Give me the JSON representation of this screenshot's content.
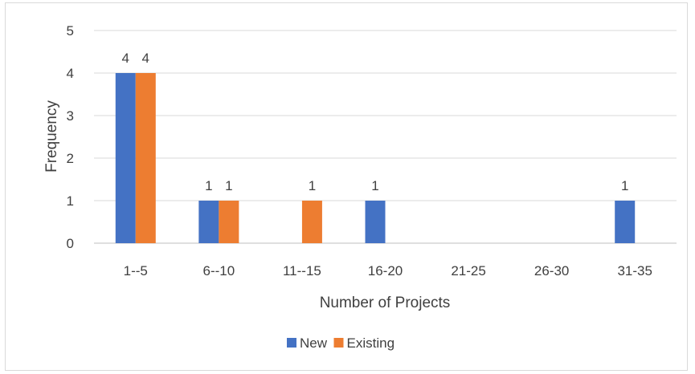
{
  "chart_data": {
    "type": "bar",
    "categories": [
      "1--5",
      "6--10",
      "11--15",
      "16-20",
      "21-25",
      "26-30",
      "31-35"
    ],
    "series": [
      {
        "name": "New",
        "values": [
          4,
          1,
          0,
          1,
          0,
          0,
          1
        ],
        "color": "#4472c4"
      },
      {
        "name": "Existing",
        "values": [
          4,
          1,
          1,
          0,
          0,
          0,
          0
        ],
        "color": "#ed7d31"
      }
    ],
    "data_labels": {
      "New": [
        "4",
        "1",
        "",
        "1",
        "",
        "",
        "1"
      ],
      "Existing": [
        "4",
        "1",
        "1",
        "",
        "",
        "",
        ""
      ]
    },
    "y_ticks": [
      0,
      1,
      2,
      3,
      4,
      5
    ],
    "ylim": [
      0,
      5
    ],
    "xlabel": "Number of Projects",
    "ylabel": "Frequency",
    "grid": true,
    "legend": "bottom"
  }
}
